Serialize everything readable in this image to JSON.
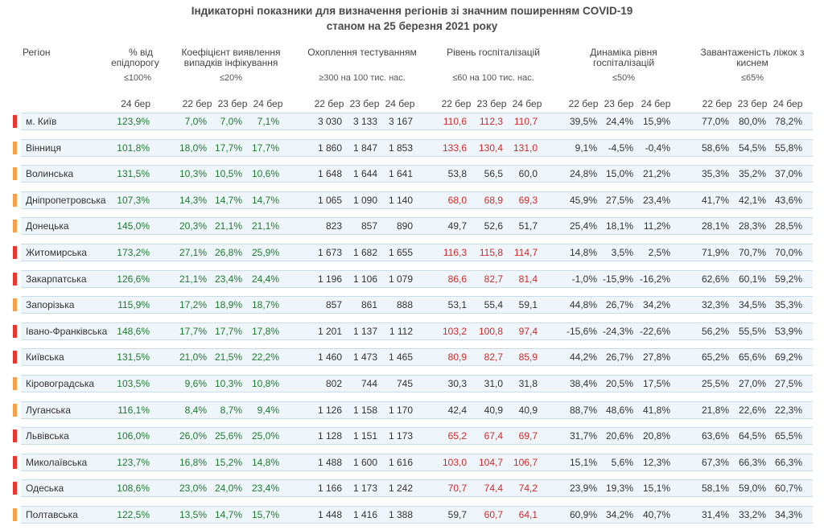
{
  "title_line1": "Індикаторні показники для визначення регіонів зі значним поширенням COVID-19",
  "title_line2": "станом на 25 березня 2021 року",
  "headers": {
    "region": "Регіон",
    "pct_threshold": "% від епідпорогу",
    "pct_threshold_sub": "≤100%",
    "detection": "Коефіцієнт виявлення випадків інфікування",
    "detection_sub": "≤20%",
    "testing": "Охоплення тестуванням",
    "testing_sub": "≥300 на 100 тис. нас.",
    "hosp": "Рівень госпіталізацій",
    "hosp_sub": "≤60 на 100 тис. нас.",
    "dyn": "Динаміка рівня госпіталізацій",
    "dyn_sub": "≤50%",
    "beds": "Завантаженість ліжок з киснем",
    "beds_sub": "≤65%"
  },
  "dates": {
    "d22": "22 бер",
    "d23": "23 бер",
    "d24": "24 бер"
  },
  "colors": {
    "red_marker": "#e8372f",
    "orange_marker": "#f5a04a"
  },
  "rows": [
    {
      "region": "м. Київ",
      "marker": "red",
      "pct": "123,9%",
      "det": [
        "7,0%",
        "7,0%",
        "7,1%"
      ],
      "test": [
        "3 030",
        "3 133",
        "3 167"
      ],
      "hosp": [
        "110,6",
        "112,3",
        "110,7"
      ],
      "hosp_red": true,
      "dyn": [
        "39,5%",
        "24,4%",
        "15,9%"
      ],
      "beds": [
        "77,0%",
        "80,0%",
        "78,2%"
      ]
    },
    {
      "region": "Вінниця",
      "marker": "orange",
      "pct": "101,8%",
      "det": [
        "18,0%",
        "17,7%",
        "17,7%"
      ],
      "test": [
        "1 860",
        "1 847",
        "1 853"
      ],
      "hosp": [
        "133,6",
        "130,4",
        "131,0"
      ],
      "hosp_red": true,
      "dyn": [
        "9,1%",
        "-4,5%",
        "-0,4%"
      ],
      "beds": [
        "58,6%",
        "54,5%",
        "55,8%"
      ]
    },
    {
      "region": "Волинська",
      "marker": "orange",
      "pct": "131,5%",
      "det": [
        "10,3%",
        "10,5%",
        "10,6%"
      ],
      "test": [
        "1 648",
        "1 644",
        "1 641"
      ],
      "hosp": [
        "53,8",
        "56,5",
        "60,0"
      ],
      "hosp_red": false,
      "dyn": [
        "24,8%",
        "15,0%",
        "21,2%"
      ],
      "beds": [
        "35,3%",
        "35,2%",
        "37,0%"
      ]
    },
    {
      "region": "Дніпропетровська",
      "marker": "orange",
      "pct": "107,3%",
      "det": [
        "14,3%",
        "14,7%",
        "14,7%"
      ],
      "test": [
        "1 065",
        "1 090",
        "1 140"
      ],
      "hosp": [
        "68,0",
        "68,9",
        "69,3"
      ],
      "hosp_red": true,
      "dyn": [
        "45,9%",
        "27,5%",
        "23,4%"
      ],
      "beds": [
        "41,7%",
        "42,1%",
        "43,6%"
      ]
    },
    {
      "region": "Донецька",
      "marker": "orange",
      "pct": "145,0%",
      "det": [
        "20,3%",
        "21,1%",
        "21,1%"
      ],
      "test": [
        "823",
        "857",
        "890"
      ],
      "hosp": [
        "49,7",
        "52,6",
        "51,7"
      ],
      "hosp_red": false,
      "dyn": [
        "25,4%",
        "18,1%",
        "11,2%"
      ],
      "beds": [
        "28,1%",
        "28,3%",
        "28,5%"
      ]
    },
    {
      "region": "Житомирська",
      "marker": "red",
      "pct": "173,2%",
      "det": [
        "27,1%",
        "26,8%",
        "25,9%"
      ],
      "test": [
        "1 673",
        "1 682",
        "1 655"
      ],
      "hosp": [
        "116,3",
        "115,8",
        "114,7"
      ],
      "hosp_red": true,
      "dyn": [
        "14,8%",
        "3,5%",
        "2,5%"
      ],
      "beds": [
        "71,9%",
        "70,7%",
        "70,0%"
      ]
    },
    {
      "region": "Закарпатська",
      "marker": "red",
      "pct": "126,6%",
      "det": [
        "21,1%",
        "23,4%",
        "24,4%"
      ],
      "test": [
        "1 196",
        "1 106",
        "1 079"
      ],
      "hosp": [
        "86,6",
        "82,7",
        "81,4"
      ],
      "hosp_red": true,
      "dyn": [
        "-1,0%",
        "-15,9%",
        "-16,2%"
      ],
      "beds": [
        "62,6%",
        "60,1%",
        "59,2%"
      ]
    },
    {
      "region": "Запорізька",
      "marker": "orange",
      "pct": "115,9%",
      "det": [
        "17,2%",
        "18,9%",
        "18,7%"
      ],
      "test": [
        "857",
        "861",
        "888"
      ],
      "hosp": [
        "53,1",
        "55,4",
        "59,1"
      ],
      "hosp_red": false,
      "dyn": [
        "44,8%",
        "26,7%",
        "34,2%"
      ],
      "beds": [
        "32,3%",
        "34,5%",
        "35,3%"
      ]
    },
    {
      "region": "Івано-Франківська",
      "marker": "red",
      "pct": "148,6%",
      "det": [
        "17,7%",
        "17,7%",
        "17,8%"
      ],
      "test": [
        "1 201",
        "1 137",
        "1 112"
      ],
      "hosp": [
        "103,2",
        "100,8",
        "97,4"
      ],
      "hosp_red": true,
      "dyn": [
        "-15,6%",
        "-24,3%",
        "-22,6%"
      ],
      "beds": [
        "56,2%",
        "55,5%",
        "53,9%"
      ]
    },
    {
      "region": "Київська",
      "marker": "red",
      "pct": "131,5%",
      "det": [
        "21,0%",
        "21,5%",
        "22,2%"
      ],
      "test": [
        "1 460",
        "1 473",
        "1 465"
      ],
      "hosp": [
        "80,9",
        "82,7",
        "85,9"
      ],
      "hosp_red": true,
      "dyn": [
        "44,2%",
        "26,7%",
        "27,8%"
      ],
      "beds": [
        "65,2%",
        "65,6%",
        "69,2%"
      ]
    },
    {
      "region": "Кіровоградська",
      "marker": "orange",
      "pct": "103,5%",
      "det": [
        "9,6%",
        "10,3%",
        "10,8%"
      ],
      "test": [
        "802",
        "744",
        "745"
      ],
      "hosp": [
        "30,3",
        "31,0",
        "31,8"
      ],
      "hosp_red": false,
      "dyn": [
        "38,4%",
        "20,5%",
        "17,5%"
      ],
      "beds": [
        "25,5%",
        "27,0%",
        "27,5%"
      ]
    },
    {
      "region": "Луганська",
      "marker": "orange",
      "pct": "116,1%",
      "det": [
        "8,4%",
        "8,7%",
        "9,4%"
      ],
      "test": [
        "1 126",
        "1 158",
        "1 170"
      ],
      "hosp": [
        "42,4",
        "40,9",
        "40,9"
      ],
      "hosp_red": false,
      "dyn": [
        "88,7%",
        "48,6%",
        "41,8%"
      ],
      "beds": [
        "21,8%",
        "22,6%",
        "22,3%"
      ]
    },
    {
      "region": "Львівська",
      "marker": "red",
      "pct": "106,0%",
      "det": [
        "26,0%",
        "25,6%",
        "25,0%"
      ],
      "test": [
        "1 128",
        "1 151",
        "1 173"
      ],
      "hosp": [
        "65,2",
        "67,4",
        "69,7"
      ],
      "hosp_red": true,
      "dyn": [
        "31,7%",
        "20,6%",
        "20,8%"
      ],
      "beds": [
        "63,6%",
        "64,5%",
        "65,5%"
      ]
    },
    {
      "region": "Миколаївська",
      "marker": "red",
      "pct": "123,7%",
      "det": [
        "16,8%",
        "15,2%",
        "14,8%"
      ],
      "test": [
        "1 488",
        "1 600",
        "1 616"
      ],
      "hosp": [
        "103,0",
        "104,7",
        "106,7"
      ],
      "hosp_red": true,
      "dyn": [
        "15,1%",
        "5,6%",
        "12,3%"
      ],
      "beds": [
        "67,3%",
        "66,3%",
        "66,3%"
      ]
    },
    {
      "region": "Одеська",
      "marker": "red",
      "pct": "108,6%",
      "det": [
        "23,0%",
        "24,0%",
        "23,4%"
      ],
      "test": [
        "1 166",
        "1 173",
        "1 242"
      ],
      "hosp": [
        "70,7",
        "74,4",
        "74,2"
      ],
      "hosp_red": true,
      "dyn": [
        "23,9%",
        "19,3%",
        "15,1%"
      ],
      "beds": [
        "58,1%",
        "59,0%",
        "60,7%"
      ]
    },
    {
      "region": "Полтавська",
      "marker": "orange",
      "pct": "122,5%",
      "det": [
        "13,5%",
        "14,7%",
        "15,7%"
      ],
      "test": [
        "1 448",
        "1 416",
        "1 388"
      ],
      "hosp": [
        "59,7",
        "60,7",
        "64,1"
      ],
      "hosp_red": "mixed",
      "dyn": [
        "60,9%",
        "34,2%",
        "40,7%"
      ],
      "beds": [
        "31,4%",
        "33,2%",
        "34,3%"
      ]
    }
  ]
}
